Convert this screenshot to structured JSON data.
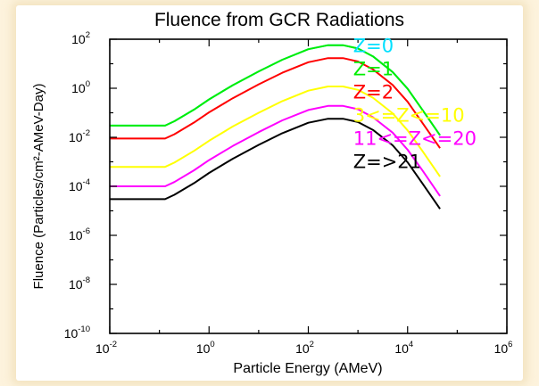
{
  "chart_data": {
    "type": "line",
    "title": "Fluence from GCR Radiations",
    "xlabel": "Particle Energy (AMeV)",
    "ylabel": "Fluence (Particles/cm²-AMeV-Day)",
    "xscale": "log",
    "yscale": "log",
    "xlim": [
      0.01,
      1000000
    ],
    "ylim": [
      1e-10,
      100
    ],
    "x_ticks": [
      {
        "value": 0.01,
        "base": "10",
        "exp": "-2"
      },
      {
        "value": 1,
        "base": "10",
        "exp": "0"
      },
      {
        "value": 100,
        "base": "10",
        "exp": "2"
      },
      {
        "value": 10000,
        "base": "10",
        "exp": "4"
      },
      {
        "value": 1000000,
        "base": "10",
        "exp": "6"
      }
    ],
    "y_ticks": [
      {
        "value": 1e-10,
        "base": "10",
        "exp": "-10"
      },
      {
        "value": 1e-08,
        "base": "10",
        "exp": "-8"
      },
      {
        "value": 1e-06,
        "base": "10",
        "exp": "-6"
      },
      {
        "value": 0.0001,
        "base": "10",
        "exp": "-4"
      },
      {
        "value": 0.01,
        "base": "10",
        "exp": "-2"
      },
      {
        "value": 1,
        "base": "10",
        "exp": "0"
      },
      {
        "value": 100,
        "base": "10",
        "exp": "2"
      }
    ],
    "legend": "inline labels at right of curves",
    "grid": false,
    "series": [
      {
        "name": "Z=0",
        "color": "#00e0ff",
        "x": [
          0.01,
          0.13,
          0.2,
          0.5,
          1,
          3,
          10,
          30,
          100,
          250,
          500,
          1000,
          2000,
          5000,
          10000,
          20000,
          45000
        ],
        "y": [
          0.03,
          0.03,
          0.045,
          0.135,
          0.35,
          1.33,
          4.85,
          14.6,
          39,
          57,
          57,
          42,
          20,
          4.6,
          0.95,
          0.13,
          0.012
        ]
      },
      {
        "name": "Z=1",
        "color": "#00ee00",
        "x": [
          0.01,
          0.13,
          0.2,
          0.5,
          1,
          3,
          10,
          30,
          100,
          250,
          500,
          1000,
          2000,
          5000,
          10000,
          20000,
          45000
        ],
        "y": [
          0.03,
          0.03,
          0.045,
          0.135,
          0.35,
          1.33,
          4.85,
          14.6,
          39,
          57,
          57,
          42,
          20,
          4.6,
          0.95,
          0.13,
          0.012
        ]
      },
      {
        "name": "Z=2",
        "color": "#ff0000",
        "x": [
          0.01,
          0.13,
          0.2,
          0.5,
          1,
          3,
          10,
          30,
          100,
          250,
          500,
          1000,
          2000,
          5000,
          10000,
          20000,
          45000
        ],
        "y": [
          0.0089,
          0.0089,
          0.0133,
          0.04,
          0.104,
          0.39,
          1.44,
          4.3,
          11.5,
          17,
          17,
          12.3,
          5.9,
          1.36,
          0.28,
          0.038,
          0.0036
        ]
      },
      {
        "name": "3<=Z<=10",
        "color": "#ffff00",
        "x": [
          0.01,
          0.13,
          0.2,
          0.5,
          1,
          3,
          10,
          30,
          100,
          250,
          500,
          1000,
          2000,
          5000,
          10000,
          20000,
          45000
        ],
        "y": [
          0.00062,
          0.00062,
          0.00093,
          0.0028,
          0.0072,
          0.0275,
          0.1,
          0.3,
          0.8,
          1.18,
          1.18,
          0.86,
          0.41,
          0.095,
          0.019,
          0.0027,
          0.00025
        ]
      },
      {
        "name": "11<=Z<=20",
        "color": "#ff00ff",
        "x": [
          0.01,
          0.13,
          0.2,
          0.5,
          1,
          3,
          10,
          30,
          100,
          250,
          500,
          1000,
          2000,
          5000,
          10000,
          20000,
          45000
        ],
        "y": [
          0.0001,
          0.0001,
          0.00015,
          0.00045,
          0.00117,
          0.0044,
          0.0162,
          0.049,
          0.13,
          0.19,
          0.19,
          0.14,
          0.066,
          0.0154,
          0.0031,
          0.00044,
          4e-05
        ]
      },
      {
        "name": "Z=>21",
        "color": "#000000",
        "x": [
          0.01,
          0.13,
          0.2,
          0.5,
          1,
          3,
          10,
          30,
          100,
          250,
          500,
          1000,
          2000,
          5000,
          10000,
          20000,
          45000
        ],
        "y": [
          3e-05,
          3e-05,
          4.5e-05,
          0.000135,
          0.00035,
          0.00133,
          0.0049,
          0.0147,
          0.039,
          0.057,
          0.057,
          0.042,
          0.02,
          0.0047,
          0.00095,
          0.00013,
          1.2e-05
        ]
      }
    ]
  }
}
